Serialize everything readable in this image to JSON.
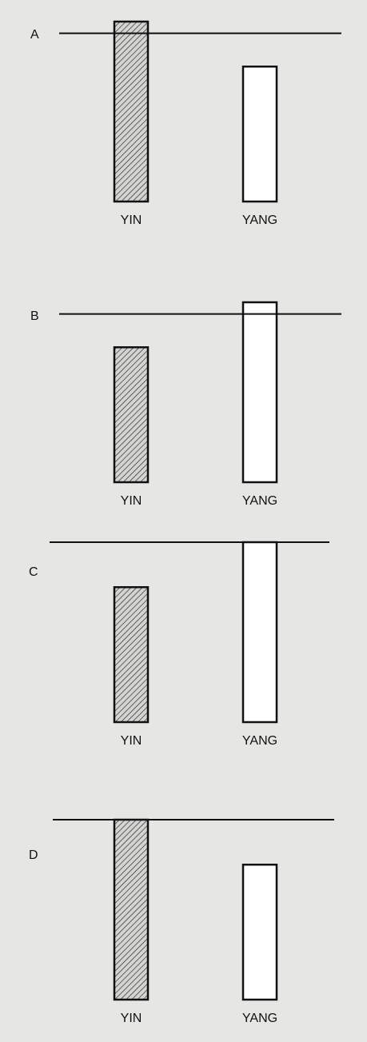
{
  "chart_data": [
    {
      "type": "bar",
      "panel": "A",
      "categories": [
        "YIN",
        "YANG"
      ],
      "values": [
        100,
        75
      ],
      "reference_line": 93.5,
      "ylim": [
        0,
        100
      ],
      "title": "",
      "xlabel": "",
      "ylabel": ""
    },
    {
      "type": "bar",
      "panel": "B",
      "categories": [
        "YIN",
        "YANG"
      ],
      "values": [
        75,
        100
      ],
      "reference_line": 93.5,
      "ylim": [
        0,
        100
      ],
      "title": "",
      "xlabel": "",
      "ylabel": ""
    },
    {
      "type": "bar",
      "panel": "C",
      "categories": [
        "YIN",
        "YANG"
      ],
      "values": [
        75,
        100
      ],
      "reference_line": 100,
      "ylim": [
        0,
        100
      ],
      "title": "",
      "xlabel": "",
      "ylabel": ""
    },
    {
      "type": "bar",
      "panel": "D",
      "categories": [
        "YIN",
        "YANG"
      ],
      "values": [
        100,
        75
      ],
      "reference_line": 100,
      "ylim": [
        0,
        100
      ],
      "title": "",
      "xlabel": "",
      "ylabel": ""
    }
  ],
  "colors": {
    "background": "#e6e6e4",
    "ink": "#111111",
    "yin_fill": "hatched",
    "yang_fill": "#ffffff"
  }
}
